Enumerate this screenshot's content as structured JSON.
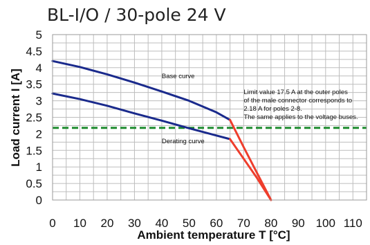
{
  "chart_data": {
    "type": "line",
    "title": "BL-I/O / 30-pole 24 V",
    "xlabel": "Ambient temperature T [°C]",
    "ylabel": "Load current I [A]",
    "xlim": [
      0,
      115
    ],
    "ylim": [
      0,
      5
    ],
    "x_ticks": [
      0,
      10,
      20,
      30,
      40,
      50,
      60,
      70,
      80,
      90,
      100,
      110
    ],
    "y_ticks": [
      0,
      0.5,
      1,
      1.5,
      2,
      2.5,
      3,
      3.5,
      4,
      4.5,
      5
    ],
    "x_tick_labels": [
      "0",
      "10",
      "20",
      "30",
      "40",
      "50",
      "60",
      "70",
      "80",
      "90",
      "100",
      "110"
    ],
    "y_tick_labels": [
      "0",
      "0.5",
      "1",
      "1.5",
      "2",
      "2.5",
      "3",
      "3.5",
      "4",
      "4.5",
      "5"
    ],
    "grid": true,
    "series": [
      {
        "name": "Base curve",
        "color": "#1a2a8c",
        "x": [
          0,
          10,
          20,
          30,
          40,
          50,
          60,
          65
        ],
        "y": [
          4.2,
          4.02,
          3.8,
          3.55,
          3.28,
          3.0,
          2.65,
          2.42
        ]
      },
      {
        "name": "",
        "color": "#ee3d2c",
        "x": [
          65,
          70,
          75,
          80
        ],
        "y": [
          2.42,
          1.6,
          0.8,
          0.0
        ]
      },
      {
        "name": "Derating curve",
        "color": "#1a2a8c",
        "x": [
          0,
          10,
          20,
          30,
          40,
          50,
          60,
          65
        ],
        "y": [
          3.22,
          3.05,
          2.85,
          2.62,
          2.4,
          2.17,
          1.95,
          1.84
        ]
      },
      {
        "name": "",
        "color": "#ee3d2c",
        "x": [
          65,
          70,
          75,
          80
        ],
        "y": [
          1.84,
          1.25,
          0.65,
          0.0
        ]
      }
    ],
    "reference_lines": [
      {
        "axis": "y",
        "value": 2.18,
        "color": "#1e8c2f",
        "style": "dashed"
      }
    ],
    "annotations": [
      {
        "text": "Base curve",
        "x": 40,
        "y": 3.68
      },
      {
        "text": "Derating curve",
        "x": 40,
        "y": 1.72
      },
      {
        "text": "Limit value 17.5 A at the outer poles",
        "x": 70,
        "y": 3.2
      },
      {
        "text": "of the male connector corresponds to",
        "x": 70,
        "y": 2.95
      },
      {
        "text": "2.18 A for poles 2-8.",
        "x": 70,
        "y": 2.7
      },
      {
        "text": "The same applies to the voltage buses.",
        "x": 70,
        "y": 2.45
      }
    ]
  }
}
